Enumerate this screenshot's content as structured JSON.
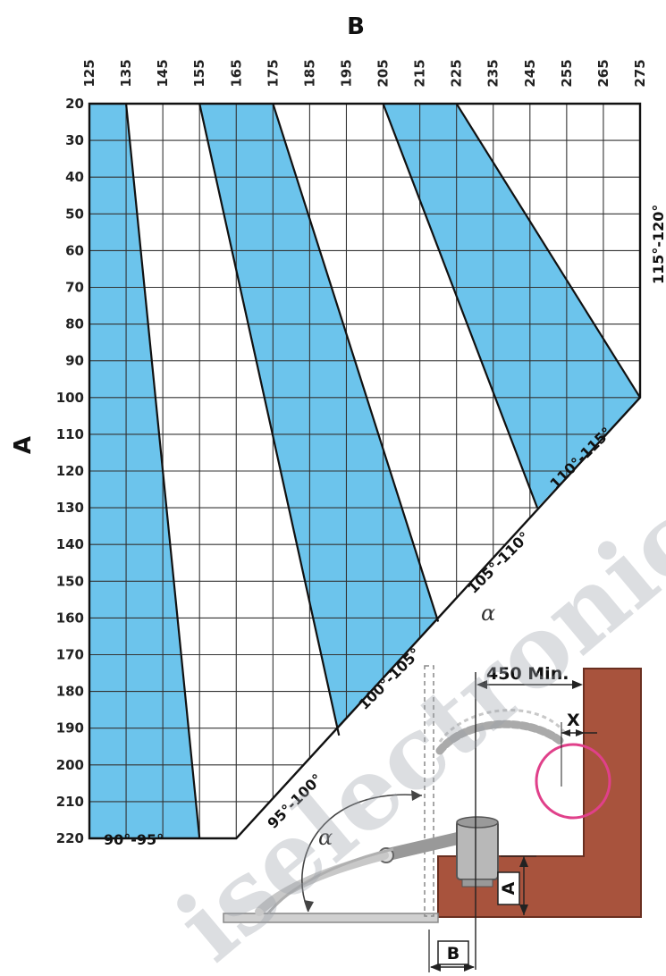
{
  "chart": {
    "x_axis_title": "B",
    "y_axis_title": "A",
    "x_ticks": [
      125,
      135,
      145,
      155,
      165,
      175,
      185,
      195,
      205,
      215,
      225,
      235,
      245,
      255,
      265,
      275
    ],
    "y_ticks": [
      20,
      30,
      40,
      50,
      60,
      70,
      80,
      90,
      100,
      110,
      120,
      130,
      140,
      150,
      160,
      170,
      180,
      190,
      200,
      210,
      220
    ],
    "zones": [
      {
        "label": "90°-95°",
        "shaded": true
      },
      {
        "label": "95°-100°",
        "shaded": false
      },
      {
        "label": "100°-105°",
        "shaded": true
      },
      {
        "label": "105°-110°",
        "shaded": false
      },
      {
        "label": "110°-115°",
        "shaded": true
      },
      {
        "label": "115°-120°",
        "shaded": false
      }
    ],
    "alpha_label": "α",
    "colors": {
      "band_fill": "#6cc4ec",
      "grid": "#333333",
      "frame": "#111111"
    }
  },
  "installation": {
    "dimension_label": "450 Min.",
    "x_label": "X",
    "a_label": "A",
    "b_label": "B",
    "alpha_label": "α",
    "colors": {
      "wall": "#a8533d",
      "motor": "#b8b8b8",
      "highlight_circle": "#e0408a"
    }
  },
  "watermark_text": "iselectronic.c"
}
